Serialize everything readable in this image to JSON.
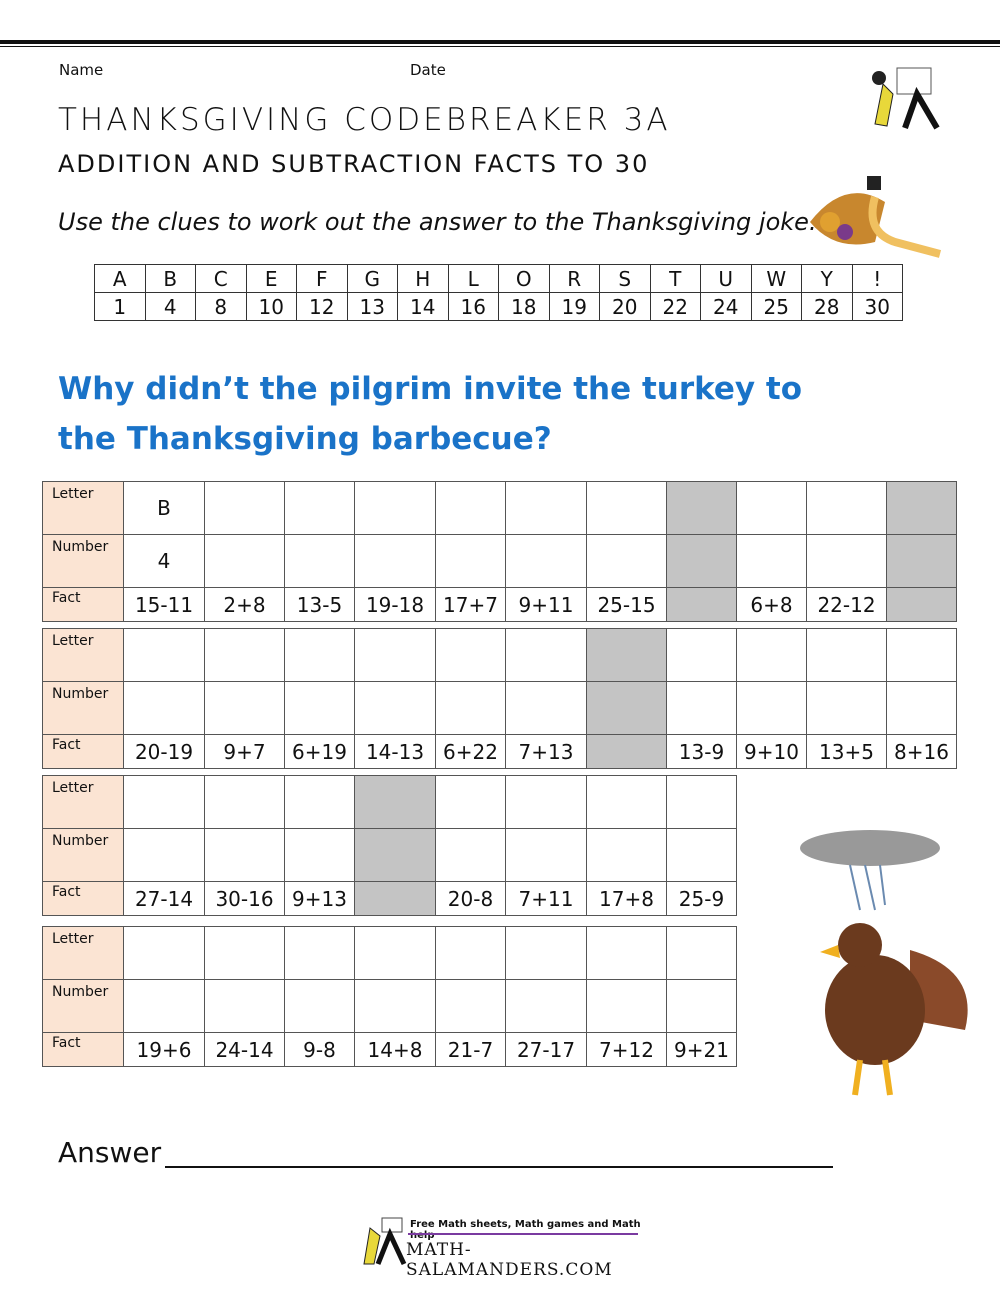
{
  "header": {
    "name_label": "Name",
    "date_label": "Date",
    "title": "Thanksgiving Codebreaker 3A",
    "subtitle": "Addition and Subtraction Facts to 30",
    "instructions": "Use the clues to work out the answer to the Thanksgiving joke."
  },
  "code_table": {
    "letters": [
      "A",
      "B",
      "C",
      "E",
      "F",
      "G",
      "H",
      "L",
      "O",
      "R",
      "S",
      "T",
      "U",
      "W",
      "Y",
      "!"
    ],
    "numbers": [
      "1",
      "4",
      "8",
      "10",
      "12",
      "13",
      "14",
      "16",
      "18",
      "19",
      "20",
      "22",
      "24",
      "25",
      "28",
      "30"
    ]
  },
  "joke": "Why didn’t the pilgrim invite the turkey to the Thanksgiving barbecue?",
  "row_labels": {
    "letter": "Letter",
    "number": "Number",
    "fact": "Fact"
  },
  "grids": [
    {
      "facts": [
        "15-11",
        "2+8",
        "13-5",
        "19-18",
        "17+7",
        "9+11",
        "25-15",
        "",
        "6+8",
        "22-12",
        ""
      ],
      "shaded": [
        7,
        10
      ],
      "letters": [
        "B"
      ],
      "numbers": [
        "4"
      ]
    },
    {
      "facts": [
        "20-19",
        "9+7",
        "6+19",
        "14-13",
        "6+22",
        "7+13",
        "",
        "13-9",
        "9+10",
        "13+5",
        "8+16"
      ],
      "shaded": [
        6
      ],
      "letters": [],
      "numbers": []
    },
    {
      "facts": [
        "27-14",
        "30-16",
        "9+13",
        "",
        "20-8",
        "7+11",
        "17+8",
        "25-9"
      ],
      "shaded": [
        3
      ],
      "letters": [],
      "numbers": []
    },
    {
      "facts": [
        "19+6",
        "24-14",
        "9-8",
        "14+8",
        "21-7",
        "27-17",
        "7+12",
        "9+21"
      ],
      "shaded": [],
      "letters": [],
      "numbers": []
    }
  ],
  "answer_label": "Answer",
  "footer": {
    "tagline": "Free Math sheets, Math games and Math help",
    "site": "MATH-SALAMANDERS.COM"
  },
  "colors": {
    "joke": "#1a73c8",
    "label_bg": "#fbe4d3",
    "shade": "#c4c4c4"
  }
}
